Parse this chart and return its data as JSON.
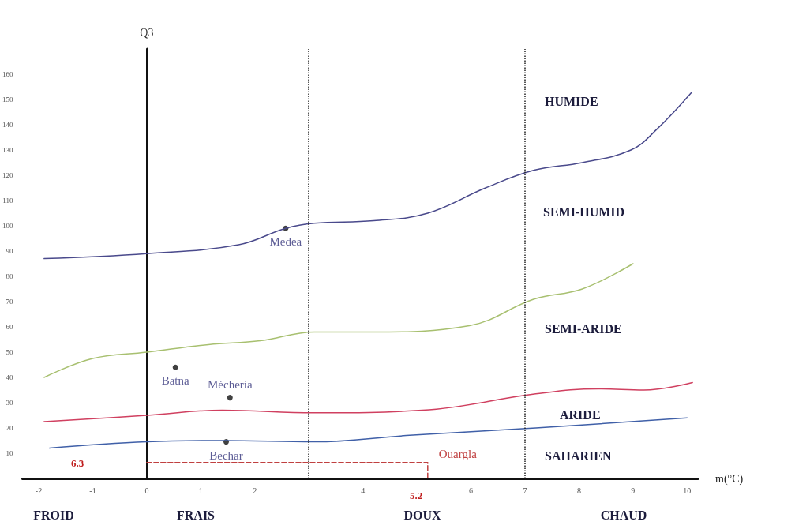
{
  "chart_data": {
    "type": "line",
    "xlabel": "m(°C)",
    "ylabel": "Q3",
    "xlim": [
      -2.3,
      10.2
    ],
    "ylim": [
      0,
      170
    ],
    "xticks": [
      -2,
      -1,
      0,
      1,
      2,
      4,
      6,
      7,
      8,
      9,
      10
    ],
    "yticks": [
      10,
      20,
      30,
      40,
      50,
      60,
      70,
      80,
      90,
      100,
      110,
      120,
      130,
      140,
      150,
      160
    ],
    "grid": false,
    "legend": false,
    "series": [
      {
        "color": "#4a4a8c",
        "x": [
          -1.9,
          0,
          1.7,
          2.57,
          3.1,
          4.2,
          5.2,
          6.27,
          7.17,
          8.06,
          8.96,
          9.43,
          10.09
        ],
        "values": [
          87,
          89,
          92.5,
          99,
          101,
          102,
          105,
          115,
          122,
          125,
          130,
          138,
          153
        ]
      },
      {
        "color": "#a8c070",
        "x": [
          -1.9,
          -1,
          0,
          1.14,
          2.1,
          3.1,
          4.2,
          5.97,
          7.17,
          8.06,
          9
        ],
        "values": [
          40,
          47.5,
          50,
          53,
          54.5,
          58,
          58,
          60.5,
          71,
          75,
          85
        ]
      },
      {
        "color": "#d04060",
        "x": [
          -1.9,
          0,
          1.4,
          3.1,
          5.1,
          7.2,
          8.36,
          9.2,
          10.1
        ],
        "values": [
          22.5,
          25,
          27,
          26,
          27,
          33.5,
          35.5,
          35,
          38
        ]
      },
      {
        "color": "#4060a8",
        "x": [
          -1.8,
          0,
          1.4,
          3.1,
          4.8,
          7.2,
          10
        ],
        "values": [
          12,
          14.5,
          15,
          14.5,
          17,
          20,
          24
        ]
      },
      {
        "type": "scatter",
        "name": "Medea",
        "color": "#111111",
        "marker": "circle",
        "x": [
          2.57
        ],
        "values": [
          99
        ]
      },
      {
        "type": "scatter",
        "name": "Batna",
        "color": "#111111",
        "marker": "circle",
        "x": [
          0.53
        ],
        "values": [
          44
        ]
      },
      {
        "type": "scatter",
        "name": "Mécheria",
        "color": "#111111",
        "marker": "circle",
        "x": [
          1.54
        ],
        "values": [
          32
        ]
      },
      {
        "type": "scatter",
        "name": "Bechar",
        "color": "#111111",
        "marker": "circle",
        "x": [
          1.47
        ],
        "values": [
          14.5
        ]
      },
      {
        "type": "line",
        "name": "Ouargla",
        "color": "#c04040",
        "line_style": "dashed",
        "marker": "none",
        "x": [
          0,
          5.2,
          5.2
        ],
        "values": [
          6.3,
          6.3,
          0
        ]
      }
    ],
    "ref_lines": [
      {
        "axis": "x",
        "value": 3,
        "line_style": "dotted",
        "color": "#222222"
      },
      {
        "axis": "x",
        "value": 7,
        "line_style": "dotted",
        "color": "#222222"
      }
    ],
    "annotations": [
      "6.3",
      "5.2",
      "FROID",
      "FRAIS",
      "DOUX",
      "CHAUD",
      "HUMIDE",
      "SEMI-HUMID",
      "SEMI-ARIDE",
      "ARIDE",
      "SAHARIEN"
    ]
  }
}
